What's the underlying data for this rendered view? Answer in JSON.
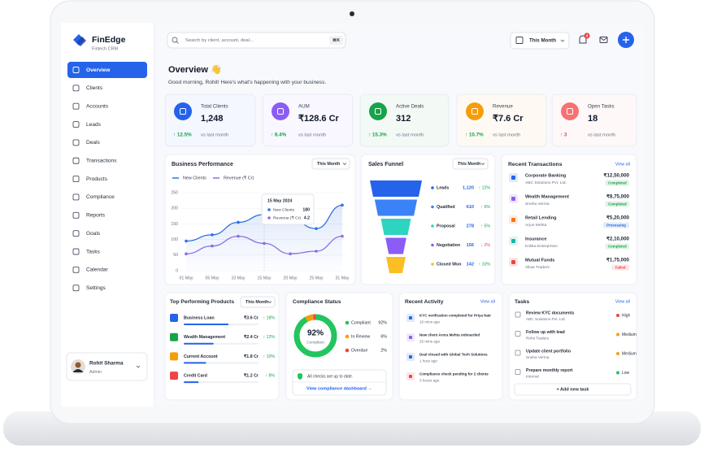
{
  "brand": {
    "name": "FinEdge",
    "tagline": "Fintech CRM"
  },
  "search": {
    "placeholder": "Search by client, account, deal...",
    "shortcut": "⌘K"
  },
  "topbar": {
    "period": "This Month",
    "notification_count": 3
  },
  "nav": {
    "items": [
      "Overview",
      "Clients",
      "Accounts",
      "Leads",
      "Deals",
      "Transactions",
      "Products",
      "Compliance",
      "Reports",
      "Goals",
      "Tasks",
      "Calendar",
      "Settings"
    ],
    "active": 0
  },
  "user": {
    "name": "Rohit Sharma",
    "role": "Admin"
  },
  "overview": {
    "title": "Overview 👋",
    "greeting": "Good morning, Rohit! Here's what's happening with your business."
  },
  "kpis": [
    {
      "label": "Total Clients",
      "value": "1,248",
      "change": "↑ 12.5%",
      "note": "vs last month",
      "color": "#2563eb",
      "change_color": "#16a34a"
    },
    {
      "label": "AUM",
      "value": "₹128.6 Cr",
      "change": "↑ 8.4%",
      "note": "vs last month",
      "color": "#8b5cf6",
      "change_color": "#16a34a"
    },
    {
      "label": "Active Deals",
      "value": "312",
      "change": "↑ 15.3%",
      "note": "vs last month",
      "color": "#16a34a",
      "change_color": "#16a34a"
    },
    {
      "label": "Revenue",
      "value": "₹7.6 Cr",
      "change": "↑ 10.7%",
      "note": "vs last month",
      "color": "#f59e0b",
      "change_color": "#16a34a"
    },
    {
      "label": "Open Tasks",
      "value": "18",
      "change": "↑ 3",
      "note": "vs last month",
      "color": "#f87171",
      "change_color": "#ef4444"
    }
  ],
  "chart_data": [
    {
      "type": "line",
      "title": "Business Performance",
      "period": "This Month",
      "categories": [
        "01 May",
        "05 May",
        "10 May",
        "15 May",
        "20 May",
        "25 May",
        "31 May"
      ],
      "series": [
        {
          "name": "New Clients",
          "color": "#2f6fe4",
          "values": [
            95,
            115,
            155,
            180,
            165,
            135,
            210
          ]
        },
        {
          "name": "Revenue (₹ Cr)",
          "color": "#8b6fe0",
          "axis": "y2",
          "values": [
            2.6,
            3.8,
            5.3,
            4.2,
            2.6,
            3.0,
            5.3
          ]
        }
      ],
      "ylim": [
        0,
        250
      ],
      "yticks": [
        0,
        50,
        100,
        150,
        200,
        250
      ],
      "y2lim": [
        0,
        12
      ],
      "grid": true,
      "tooltip": {
        "date": "15 May 2024",
        "index": 3
      }
    },
    {
      "type": "funnel",
      "title": "Sales Funnel",
      "period": "This Month",
      "categories": [
        "Leads",
        "Qualified",
        "Proposal",
        "Negotiation",
        "Closed Won"
      ],
      "values": [
        1120,
        610,
        278,
        156,
        142
      ],
      "value_labels": [
        "1,120",
        "610",
        "278",
        "156",
        "142"
      ],
      "changes": [
        "↑ 12%",
        "↑ 5%",
        "↑ 5%",
        "↓ 2%",
        "↑ 10%"
      ],
      "change_colors": [
        "#16a34a",
        "#16a34a",
        "#16a34a",
        "#ef4444",
        "#16a34a"
      ],
      "colors": [
        "#2563eb",
        "#3b82f6",
        "#2dd4bf",
        "#8b5cf6",
        "#fbbf24"
      ]
    },
    {
      "type": "pie",
      "title": "Compliance Status",
      "categories": [
        "Compliant",
        "In Review",
        "Overdue"
      ],
      "values": [
        92,
        6,
        2
      ],
      "value_labels": [
        "92%",
        "6%",
        "2%"
      ],
      "colors": [
        "#22c55e",
        "#f59e0b",
        "#ef4444"
      ],
      "center_label": "Compliant",
      "note": "All checks are up to date.",
      "link": "View compliance dashboard →"
    }
  ],
  "transactions": {
    "title": "Recent Transactions",
    "view_all": "View all",
    "items": [
      {
        "name": "Corporate Banking",
        "sub": "ABC Solutions Pvt. Ltd.",
        "amount": "₹12,50,000",
        "status": "Completed",
        "color": "#2563eb",
        "status_color": "#16a34a"
      },
      {
        "name": "Wealth Management",
        "sub": "Sneha Verma",
        "amount": "₹8,75,000",
        "status": "Completed",
        "color": "#8b5cf6",
        "status_color": "#16a34a"
      },
      {
        "name": "Retail Lending",
        "sub": "Arjun Mehta",
        "amount": "₹5,20,000",
        "status": "Processing",
        "color": "#f97316",
        "status_color": "#2563eb"
      },
      {
        "name": "Insurance",
        "sub": "Kritika Enterprises",
        "amount": "₹2,10,000",
        "status": "Completed",
        "color": "#14b8a6",
        "status_color": "#16a34a"
      },
      {
        "name": "Mutual Funds",
        "sub": "Vikas Traders",
        "amount": "₹1,75,000",
        "status": "Failed",
        "color": "#ef4444",
        "status_color": "#ef4444"
      }
    ]
  },
  "products": {
    "title": "Top Performing Products",
    "period": "This Month",
    "items": [
      {
        "name": "Business Loan",
        "amount": 3.6,
        "amount_label": "₹3.6 Cr",
        "change": "↑ 18%",
        "color": "#2563eb"
      },
      {
        "name": "Wealth Management",
        "amount": 2.4,
        "amount_label": "₹2.4 Cr",
        "change": "↑ 12%",
        "color": "#16a34a"
      },
      {
        "name": "Current Account",
        "amount": 1.8,
        "amount_label": "₹1.8 Cr",
        "change": "↑ 10%",
        "color": "#f59e0b"
      },
      {
        "name": "Credit Card",
        "amount": 1.2,
        "amount_label": "₹1.2 Cr",
        "change": "↑ 8%",
        "color": "#ef4444"
      }
    ]
  },
  "activity": {
    "title": "Recent Activity",
    "view_all": "View all",
    "items": [
      {
        "text": "KYC verification completed for Priya Nair",
        "time": "10 mins ago",
        "color": "#2563eb"
      },
      {
        "text": "New client Arora Mehta onboarded",
        "time": "25 mins ago",
        "color": "#8b5cf6"
      },
      {
        "text": "Deal closed with Global Tech Solutions",
        "time": "1 hour ago",
        "color": "#2563eb"
      },
      {
        "text": "Compliance check pending for 2 clients",
        "time": "3 hours ago",
        "color": "#ef4444"
      }
    ]
  },
  "tasks": {
    "title": "Tasks",
    "view_all": "View all",
    "add": "+ Add new task",
    "items": [
      {
        "title": "Review KYC documents",
        "sub": "ABC Solutions Pvt. Ltd.",
        "priority": "High",
        "color": "#ef4444"
      },
      {
        "title": "Follow up with lead",
        "sub": "Rohit Traders",
        "priority": "Medium",
        "color": "#f59e0b"
      },
      {
        "title": "Update client portfolio",
        "sub": "Sneha Verma",
        "priority": "Medium",
        "color": "#f59e0b"
      },
      {
        "title": "Prepare monthly report",
        "sub": "Internal",
        "priority": "Low",
        "color": "#22c55e"
      }
    ]
  }
}
